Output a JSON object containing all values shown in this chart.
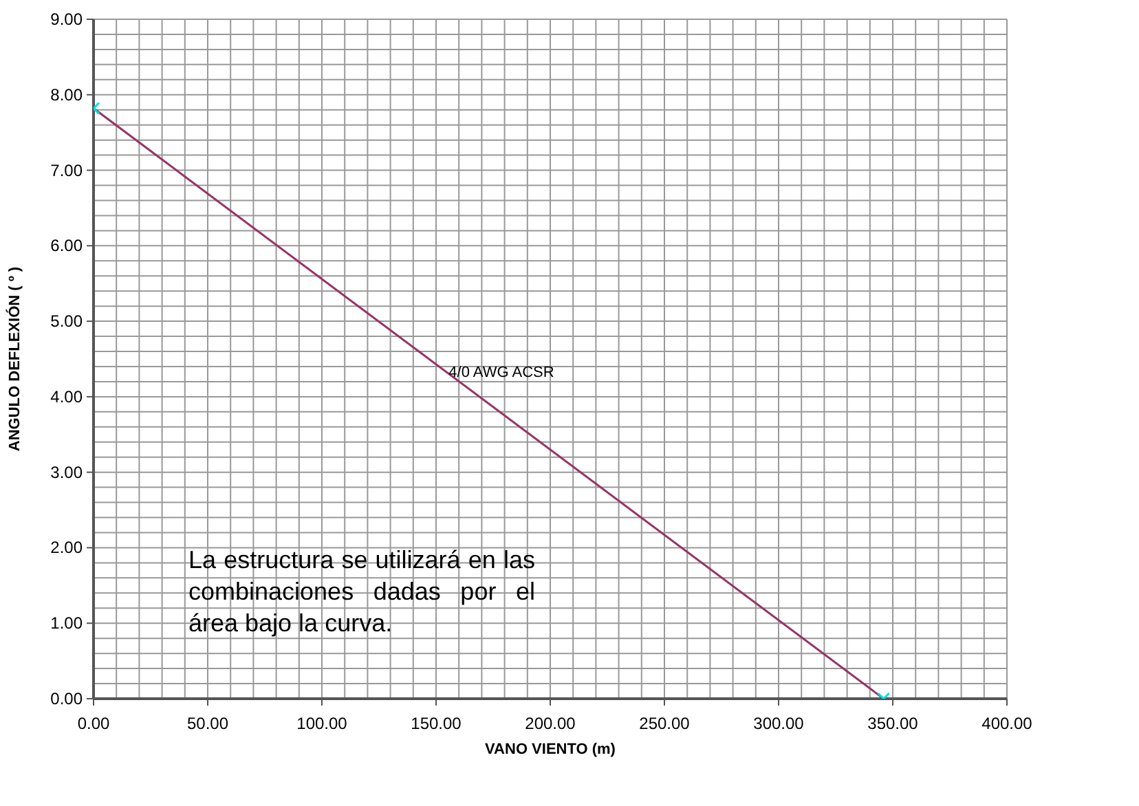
{
  "chart_data": {
    "type": "line",
    "xlabel": "VANO VIENTO (m)",
    "ylabel": "ANGULO DEFLEXIÓN ( º )",
    "annotations": [
      "La estructura se utilizará en las combinaciones dadas por el área bajo la curva."
    ],
    "series": [
      {
        "name": "4/0 AWG ACSR",
        "color": "#993366",
        "x": [
          0,
          346
        ],
        "values": [
          7.82,
          0
        ]
      }
    ],
    "marker": "cross",
    "grid": true,
    "xlim": [
      0,
      400
    ],
    "ylim": [
      0,
      9
    ],
    "xticks": [
      {
        "value": 0,
        "label": "0.00"
      },
      {
        "value": 10,
        "label": null
      },
      {
        "value": 20,
        "label": null
      },
      {
        "value": 30,
        "label": null
      },
      {
        "value": 40,
        "label": null
      },
      {
        "value": 50,
        "label": "50.00"
      },
      {
        "value": 60,
        "label": null
      },
      {
        "value": 70,
        "label": null
      },
      {
        "value": 80,
        "label": null
      },
      {
        "value": 90,
        "label": null
      },
      {
        "value": 100,
        "label": "100.00"
      },
      {
        "value": 110,
        "label": null
      },
      {
        "value": 120,
        "label": null
      },
      {
        "value": 130,
        "label": null
      },
      {
        "value": 140,
        "label": null
      },
      {
        "value": 150,
        "label": "150.00"
      },
      {
        "value": 160,
        "label": null
      },
      {
        "value": 170,
        "label": null
      },
      {
        "value": 180,
        "label": null
      },
      {
        "value": 190,
        "label": null
      },
      {
        "value": 200,
        "label": "200.00"
      },
      {
        "value": 210,
        "label": null
      },
      {
        "value": 220,
        "label": null
      },
      {
        "value": 230,
        "label": null
      },
      {
        "value": 240,
        "label": null
      },
      {
        "value": 250,
        "label": "250.00"
      },
      {
        "value": 260,
        "label": null
      },
      {
        "value": 270,
        "label": null
      },
      {
        "value": 280,
        "label": null
      },
      {
        "value": 290,
        "label": null
      },
      {
        "value": 300,
        "label": "300.00"
      },
      {
        "value": 310,
        "label": null
      },
      {
        "value": 320,
        "label": null
      },
      {
        "value": 330,
        "label": null
      },
      {
        "value": 340,
        "label": null
      },
      {
        "value": 350,
        "label": "350.00"
      },
      {
        "value": 360,
        "label": null
      },
      {
        "value": 370,
        "label": null
      },
      {
        "value": 380,
        "label": null
      },
      {
        "value": 390,
        "label": null
      },
      {
        "value": 400,
        "label": "400.00"
      }
    ],
    "yticks": [
      {
        "value": 0,
        "label": "0.00"
      },
      {
        "value": 0.2,
        "label": null
      },
      {
        "value": 0.4,
        "label": null
      },
      {
        "value": 0.6,
        "label": null
      },
      {
        "value": 0.8,
        "label": null
      },
      {
        "value": 1,
        "label": "1.00"
      },
      {
        "value": 1.2,
        "label": null
      },
      {
        "value": 1.4,
        "label": null
      },
      {
        "value": 1.6,
        "label": null
      },
      {
        "value": 1.8,
        "label": null
      },
      {
        "value": 2,
        "label": "2.00"
      },
      {
        "value": 2.2,
        "label": null
      },
      {
        "value": 2.4,
        "label": null
      },
      {
        "value": 2.6,
        "label": null
      },
      {
        "value": 2.8,
        "label": null
      },
      {
        "value": 3,
        "label": "3.00"
      },
      {
        "value": 3.2,
        "label": null
      },
      {
        "value": 3.4,
        "label": null
      },
      {
        "value": 3.6,
        "label": null
      },
      {
        "value": 3.8,
        "label": null
      },
      {
        "value": 4,
        "label": "4.00"
      },
      {
        "value": 4.2,
        "label": null
      },
      {
        "value": 4.4,
        "label": null
      },
      {
        "value": 4.6,
        "label": null
      },
      {
        "value": 4.8,
        "label": null
      },
      {
        "value": 5,
        "label": "5.00"
      },
      {
        "value": 5.2,
        "label": null
      },
      {
        "value": 5.4,
        "label": null
      },
      {
        "value": 5.6,
        "label": null
      },
      {
        "value": 5.8,
        "label": null
      },
      {
        "value": 6,
        "label": "6.00"
      },
      {
        "value": 6.2,
        "label": null
      },
      {
        "value": 6.4,
        "label": null
      },
      {
        "value": 6.6,
        "label": null
      },
      {
        "value": 6.8,
        "label": null
      },
      {
        "value": 7,
        "label": "7.00"
      },
      {
        "value": 7.2,
        "label": null
      },
      {
        "value": 7.4,
        "label": null
      },
      {
        "value": 7.6,
        "label": null
      },
      {
        "value": 7.8,
        "label": null
      },
      {
        "value": 8,
        "label": "8.00"
      },
      {
        "value": 8.2,
        "label": null
      },
      {
        "value": 8.4,
        "label": null
      },
      {
        "value": 8.6,
        "label": null
      },
      {
        "value": 8.8,
        "label": null
      },
      {
        "value": 9,
        "label": "9.00"
      }
    ]
  }
}
